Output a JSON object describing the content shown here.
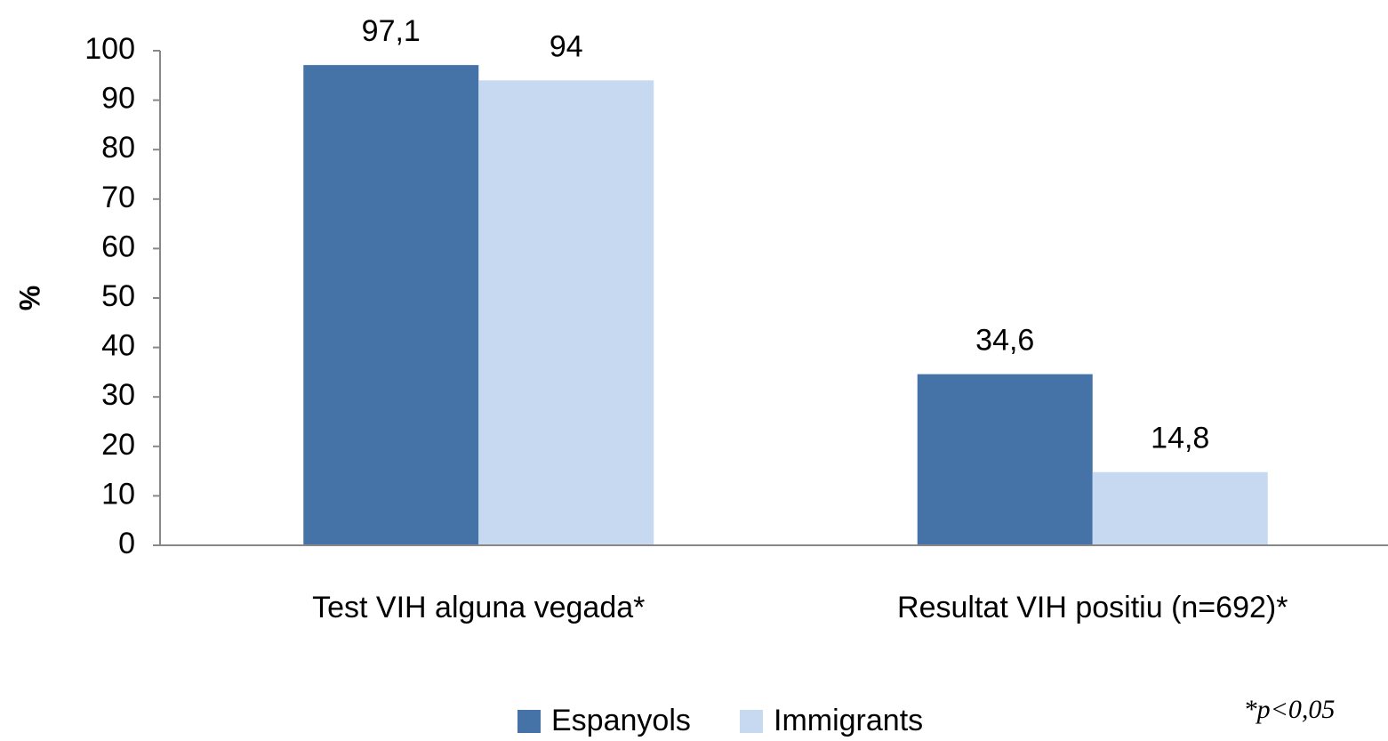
{
  "chart_data": {
    "type": "bar",
    "categories": [
      "Test VIH alguna vegada*",
      "Resultat VIH positiu (n=692)*"
    ],
    "series": [
      {
        "name": "Espanyols",
        "color": "#4573a7",
        "values": [
          97.1,
          34.6
        ],
        "value_labels": [
          "97,1",
          "34,6"
        ]
      },
      {
        "name": "Immigrants",
        "color": "#c6d9f1",
        "values": [
          94,
          14.8
        ],
        "value_labels": [
          "94",
          "14,8"
        ]
      }
    ],
    "y_label": "%",
    "ylim": [
      0,
      100
    ],
    "yticks": [
      0,
      10,
      20,
      30,
      40,
      50,
      60,
      70,
      80,
      90,
      100
    ],
    "legend": "bottom",
    "annotation": "*p<0,05"
  }
}
